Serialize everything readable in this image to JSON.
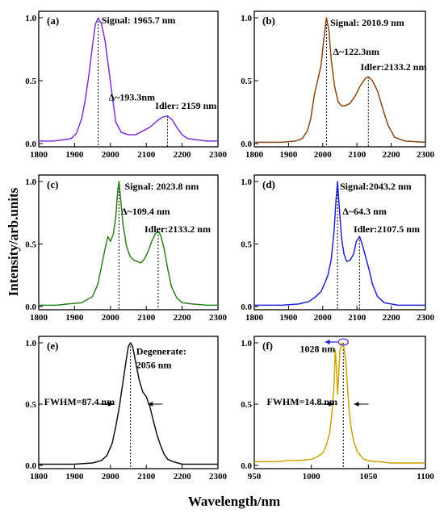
{
  "figure": {
    "xlabel": "Wavelength/nm",
    "ylabel": "Intensity/arb.units"
  },
  "chart_data": [
    {
      "type": "line",
      "panel": "(a)",
      "color": "#7b2fd6",
      "xlim": [
        1800,
        2300
      ],
      "ylim": [
        0,
        1.0
      ],
      "xticks": [
        1800,
        1900,
        2000,
        2100,
        2200,
        2300
      ],
      "yticks": [
        0.0,
        0.5,
        1.0
      ],
      "series": [
        {
          "x": [
            1800,
            1840,
            1870,
            1890,
            1905,
            1920,
            1930,
            1940,
            1950,
            1958,
            1965.7,
            1975,
            1985,
            1995,
            2005,
            2015,
            2030,
            2050,
            2070,
            2090,
            2110,
            2130,
            2145,
            2159,
            2172,
            2185,
            2200,
            2215,
            2240,
            2270,
            2300
          ],
          "y": [
            0.02,
            0.02,
            0.03,
            0.04,
            0.08,
            0.2,
            0.35,
            0.55,
            0.78,
            0.95,
            1.0,
            0.95,
            0.82,
            0.6,
            0.38,
            0.17,
            0.09,
            0.07,
            0.07,
            0.1,
            0.13,
            0.18,
            0.21,
            0.22,
            0.19,
            0.13,
            0.07,
            0.04,
            0.03,
            0.02,
            0.02
          ]
        }
      ],
      "peaks": [
        {
          "x": 1965.7,
          "y": 1.0
        },
        {
          "x": 2159,
          "y": 0.22
        }
      ],
      "annotations": [
        {
          "text": "Signal: 1965.7 nm",
          "x": 1975,
          "y": 0.98
        },
        {
          "text": "Δ~193.3nm",
          "x": 1995,
          "y": 0.37
        },
        {
          "text": "Idler: 2159 nm",
          "x": 2125,
          "y": 0.3
        }
      ]
    },
    {
      "type": "line",
      "panel": "(b)",
      "color": "#8b4513",
      "xlim": [
        1800,
        2300
      ],
      "ylim": [
        0,
        1.0
      ],
      "xticks": [
        1800,
        1900,
        2000,
        2100,
        2200,
        2300
      ],
      "yticks": [
        0.0,
        0.5,
        1.0
      ],
      "series": [
        {
          "x": [
            1800,
            1880,
            1920,
            1940,
            1955,
            1965,
            1975,
            1985,
            1995,
            2002,
            2010.9,
            2018,
            2025,
            2035,
            2045,
            2055,
            2065,
            2080,
            2095,
            2110,
            2125,
            2133.2,
            2145,
            2160,
            2175,
            2190,
            2210,
            2240,
            2300
          ],
          "y": [
            0.01,
            0.01,
            0.02,
            0.04,
            0.1,
            0.2,
            0.38,
            0.5,
            0.62,
            0.8,
            1.0,
            0.9,
            0.66,
            0.45,
            0.33,
            0.3,
            0.3,
            0.32,
            0.38,
            0.46,
            0.52,
            0.53,
            0.5,
            0.42,
            0.28,
            0.15,
            0.05,
            0.02,
            0.01
          ]
        }
      ],
      "peaks": [
        {
          "x": 2010.9,
          "y": 1.0
        },
        {
          "x": 2133.2,
          "y": 0.53
        }
      ],
      "annotations": [
        {
          "text": "Signal: 2010.9 nm",
          "x": 2022,
          "y": 0.96
        },
        {
          "text": "Δ~122.3nm",
          "x": 2030,
          "y": 0.73
        },
        {
          "text": "Idler:2133.2 nm",
          "x": 2110,
          "y": 0.61
        }
      ]
    },
    {
      "type": "line",
      "panel": "(c)",
      "color": "#2e7d1e",
      "xlim": [
        1800,
        2300
      ],
      "ylim": [
        0,
        1.0
      ],
      "xticks": [
        1800,
        1900,
        2000,
        2100,
        2200,
        2300
      ],
      "yticks": [
        0.0,
        0.5,
        1.0
      ],
      "series": [
        {
          "x": [
            1800,
            1850,
            1880,
            1920,
            1950,
            1965,
            1975,
            1985,
            1993,
            2000,
            2008,
            2015,
            2020,
            2023.8,
            2028,
            2035,
            2045,
            2055,
            2065,
            2075,
            2085,
            2095,
            2105,
            2115,
            2125,
            2133.2,
            2140,
            2150,
            2160,
            2170,
            2185,
            2200,
            2230,
            2270,
            2300
          ],
          "y": [
            0.01,
            0.01,
            0.02,
            0.03,
            0.08,
            0.18,
            0.32,
            0.46,
            0.56,
            0.52,
            0.58,
            0.72,
            0.92,
            1.0,
            0.88,
            0.66,
            0.48,
            0.4,
            0.37,
            0.36,
            0.35,
            0.38,
            0.44,
            0.52,
            0.58,
            0.6,
            0.57,
            0.46,
            0.3,
            0.16,
            0.07,
            0.03,
            0.02,
            0.01,
            0.01
          ]
        }
      ],
      "peaks": [
        {
          "x": 2023.8,
          "y": 1.0
        },
        {
          "x": 2133.2,
          "y": 0.6
        }
      ],
      "annotations": [
        {
          "text": "Signal: 2023.8 nm",
          "x": 2040,
          "y": 0.96
        },
        {
          "text": "Δ~109.4 nm",
          "x": 2030,
          "y": 0.76
        },
        {
          "text": "Idler:2133.2 nm",
          "x": 2095,
          "y": 0.62
        }
      ]
    },
    {
      "type": "line",
      "panel": "(d)",
      "color": "#1f24cf",
      "xlim": [
        1800,
        2300
      ],
      "ylim": [
        0,
        1.0
      ],
      "xticks": [
        1800,
        1900,
        2000,
        2100,
        2200,
        2300
      ],
      "yticks": [
        0.0,
        0.5,
        1.0
      ],
      "series": [
        {
          "x": [
            1800,
            1880,
            1930,
            1960,
            1980,
            1995,
            2005,
            2015,
            2025,
            2033,
            2038,
            2043.2,
            2048,
            2055,
            2062,
            2070,
            2080,
            2090,
            2098,
            2107.5,
            2115,
            2125,
            2135,
            2145,
            2160,
            2180,
            2220,
            2300
          ],
          "y": [
            0.01,
            0.01,
            0.02,
            0.04,
            0.08,
            0.12,
            0.18,
            0.25,
            0.38,
            0.6,
            0.82,
            1.0,
            0.8,
            0.55,
            0.42,
            0.36,
            0.37,
            0.42,
            0.52,
            0.56,
            0.5,
            0.4,
            0.3,
            0.18,
            0.08,
            0.03,
            0.01,
            0.01
          ]
        }
      ],
      "peaks": [
        {
          "x": 2043.2,
          "y": 1.0
        },
        {
          "x": 2107.5,
          "y": 0.56
        }
      ],
      "annotations": [
        {
          "text": "Signal:2043.2 nm",
          "x": 2050,
          "y": 0.96
        },
        {
          "text": "Δ~64.3 nm",
          "x": 2058,
          "y": 0.76
        },
        {
          "text": "Idler:2107.5 nm",
          "x": 2090,
          "y": 0.62
        }
      ]
    },
    {
      "type": "line",
      "panel": "(e)",
      "color": "#111111",
      "xlim": [
        1800,
        2300
      ],
      "ylim": [
        0,
        1.0
      ],
      "xticks": [
        1800,
        1900,
        2000,
        2100,
        2200,
        2300
      ],
      "yticks": [
        0.0,
        0.5,
        1.0
      ],
      "series": [
        {
          "x": [
            1800,
            1900,
            1950,
            1975,
            1990,
            2005,
            2015,
            2025,
            2035,
            2045,
            2050,
            2056,
            2062,
            2070,
            2080,
            2090,
            2100,
            2110,
            2120,
            2130,
            2140,
            2150,
            2160,
            2175,
            2200,
            2250,
            2300
          ],
          "y": [
            0.01,
            0.01,
            0.02,
            0.04,
            0.08,
            0.18,
            0.32,
            0.48,
            0.68,
            0.88,
            0.97,
            1.0,
            0.97,
            0.85,
            0.7,
            0.6,
            0.56,
            0.48,
            0.36,
            0.25,
            0.16,
            0.09,
            0.05,
            0.03,
            0.01,
            0.01,
            0.01
          ]
        }
      ],
      "peaks": [
        {
          "x": 2056,
          "y": 1.0
        }
      ],
      "fwhm_range": [
        2012,
        2100
      ],
      "annotations": [
        {
          "text": "Degenerate:",
          "x": 2072,
          "y": 0.93
        },
        {
          "text": "2056 nm",
          "x": 2072,
          "y": 0.82
        },
        {
          "text": "FWHM=87.4 nm",
          "x": 1815,
          "y": 0.52
        }
      ]
    },
    {
      "type": "line",
      "panel": "(f)",
      "color": "#c9a400",
      "xlim": [
        950,
        1100
      ],
      "ylim": [
        0,
        1.0
      ],
      "xticks": [
        950,
        1000,
        1050,
        1100
      ],
      "yticks": [
        0.0,
        0.5,
        1.0
      ],
      "series": [
        {
          "x": [
            950,
            960,
            970,
            980,
            990,
            1000,
            1005,
            1010,
            1013,
            1016,
            1018,
            1020,
            1021,
            1022,
            1023,
            1024,
            1025,
            1026,
            1027,
            1028,
            1029,
            1030,
            1031,
            1032,
            1033,
            1035,
            1037,
            1040,
            1043,
            1046,
            1050,
            1055,
            1060,
            1070,
            1080,
            1090,
            1100
          ],
          "y": [
            0.03,
            0.03,
            0.03,
            0.04,
            0.04,
            0.05,
            0.07,
            0.1,
            0.16,
            0.26,
            0.42,
            0.66,
            0.94,
            0.8,
            0.58,
            0.75,
            0.93,
            0.97,
            1.0,
            0.98,
            0.93,
            0.86,
            0.74,
            0.6,
            0.46,
            0.3,
            0.2,
            0.12,
            0.08,
            0.05,
            0.04,
            0.03,
            0.03,
            0.02,
            0.02,
            0.02,
            0.02
          ]
        }
      ],
      "peaks": [
        {
          "x": 1028,
          "y": 1.0
        }
      ],
      "fwhm_range": [
        1021,
        1036
      ],
      "annotations": [
        {
          "text": "1028 nm",
          "x": 990,
          "y": 0.95,
          "color": "#1f24cf"
        },
        {
          "text": "FWHM=14.8 nm",
          "x": 961,
          "y": 0.52
        }
      ]
    }
  ]
}
